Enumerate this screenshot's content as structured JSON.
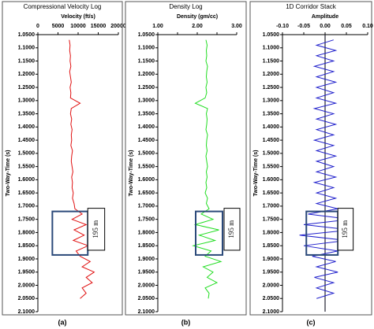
{
  "chart_data": [
    {
      "type": "line",
      "orientation": "vertical",
      "title": "Compressional Velocity Log",
      "x_label": "Velocity (ft/s)",
      "y_label": "Two-Way-Time (s)",
      "panel_label": "(a)",
      "annotation": "195 m",
      "highlight_range": [
        1.72,
        1.885
      ],
      "x": [
        1.07,
        1.09,
        1.11,
        1.13,
        1.15,
        1.17,
        1.19,
        1.21,
        1.23,
        1.25,
        1.27,
        1.29,
        1.31,
        1.33,
        1.35,
        1.37,
        1.39,
        1.41,
        1.43,
        1.45,
        1.47,
        1.49,
        1.51,
        1.53,
        1.55,
        1.57,
        1.59,
        1.61,
        1.63,
        1.65,
        1.67,
        1.69,
        1.71,
        1.73,
        1.75,
        1.77,
        1.79,
        1.81,
        1.83,
        1.85,
        1.87,
        1.89,
        1.91,
        1.93,
        1.95,
        1.97,
        1.99,
        2.01,
        2.03,
        2.05
      ],
      "values": [
        7800,
        8000,
        7900,
        8100,
        8000,
        8200,
        7900,
        8100,
        8300,
        8000,
        8200,
        8100,
        10500,
        8300,
        8100,
        8400,
        8200,
        8500,
        8300,
        8400,
        8200,
        8600,
        8400,
        8300,
        8500,
        8700,
        8400,
        8600,
        8500,
        8800,
        8600,
        9000,
        9200,
        11000,
        8500,
        12000,
        9000,
        11500,
        8800,
        12500,
        9500,
        10500,
        13000,
        11000,
        14000,
        12000,
        13500,
        11000,
        12000,
        10500
      ],
      "color": "#e01010",
      "xlim": [
        0,
        20000
      ],
      "xticks": [
        0,
        5000,
        10000,
        15000,
        20000
      ],
      "ylim": [
        1.05,
        2.1
      ],
      "y_reversed": true,
      "yticks": [
        {
          "value": 1.05,
          "label": "1.0500"
        },
        {
          "value": 1.1,
          "label": "1.1000"
        },
        {
          "value": 1.15,
          "label": "1.1500"
        },
        {
          "value": 1.2,
          "label": "1.2000"
        },
        {
          "value": 1.25,
          "label": "1.2500"
        },
        {
          "value": 1.3,
          "label": "1.3000"
        },
        {
          "value": 1.35,
          "label": "1.3500"
        },
        {
          "value": 1.4,
          "label": "1.4000"
        },
        {
          "value": 1.45,
          "label": "1.4500"
        },
        {
          "value": 1.5,
          "label": "1.5000"
        },
        {
          "value": 1.55,
          "label": "1.5500"
        },
        {
          "value": 1.6,
          "label": "1.6000"
        },
        {
          "value": 1.65,
          "label": "1.6500"
        },
        {
          "value": 1.7,
          "label": "1.7000"
        },
        {
          "value": 1.75,
          "label": "1.7500"
        },
        {
          "value": 1.8,
          "label": "1.8000"
        },
        {
          "value": 1.85,
          "label": "1.8500"
        },
        {
          "value": 1.9,
          "label": "1.9000"
        },
        {
          "value": 1.95,
          "label": "1.9500"
        },
        {
          "value": 2.0,
          "label": "2.0000"
        },
        {
          "value": 2.05,
          "label": "2.0500"
        },
        {
          "value": 2.1,
          "label": "2.1000"
        }
      ]
    },
    {
      "type": "line",
      "orientation": "vertical",
      "title": "Density Log",
      "x_label": "Density (gm/cc)",
      "y_label": "Two-Way-Time (s)",
      "panel_label": "(b)",
      "annotation": "195 m",
      "highlight_range": [
        1.72,
        1.885
      ],
      "x": [
        1.07,
        1.09,
        1.11,
        1.13,
        1.15,
        1.17,
        1.19,
        1.21,
        1.23,
        1.25,
        1.27,
        1.29,
        1.31,
        1.33,
        1.35,
        1.37,
        1.39,
        1.41,
        1.43,
        1.45,
        1.47,
        1.49,
        1.51,
        1.53,
        1.55,
        1.57,
        1.59,
        1.61,
        1.63,
        1.65,
        1.67,
        1.69,
        1.71,
        1.73,
        1.75,
        1.77,
        1.79,
        1.81,
        1.83,
        1.85,
        1.87,
        1.89,
        1.91,
        1.93,
        1.95,
        1.97,
        1.99,
        2.01,
        2.03,
        2.05
      ],
      "values": [
        2.22,
        2.25,
        2.23,
        2.24,
        2.22,
        2.26,
        2.24,
        2.23,
        2.25,
        2.22,
        2.24,
        2.2,
        1.95,
        2.26,
        2.23,
        2.25,
        2.24,
        2.22,
        2.26,
        2.24,
        2.23,
        2.25,
        2.22,
        2.24,
        2.26,
        2.23,
        2.25,
        2.22,
        2.24,
        2.2,
        2.26,
        2.23,
        2.3,
        2.1,
        2.4,
        1.95,
        2.55,
        2.05,
        2.45,
        1.9,
        2.35,
        2.2,
        2.6,
        2.15,
        2.4,
        2.25,
        2.5,
        2.2,
        2.3,
        2.28
      ],
      "color": "#22dd22",
      "xlim": [
        1,
        3
      ],
      "xticks": [
        {
          "value": 1,
          "label": "1.00"
        },
        {
          "value": 1.5,
          "label": ""
        },
        {
          "value": 2,
          "label": "2.00"
        },
        {
          "value": 2.5,
          "label": ""
        },
        {
          "value": 3,
          "label": "3.00"
        }
      ],
      "ylim": [
        1.05,
        2.1
      ],
      "y_reversed": true,
      "yticks": [
        {
          "value": 1.05,
          "label": "1.0500"
        },
        {
          "value": 1.1,
          "label": "1.1000"
        },
        {
          "value": 1.15,
          "label": "1.1500"
        },
        {
          "value": 1.2,
          "label": "1.2000"
        },
        {
          "value": 1.25,
          "label": "1.2500"
        },
        {
          "value": 1.3,
          "label": "1.3000"
        },
        {
          "value": 1.35,
          "label": "1.3500"
        },
        {
          "value": 1.4,
          "label": "1.4000"
        },
        {
          "value": 1.45,
          "label": "1.4500"
        },
        {
          "value": 1.5,
          "label": "1.5000"
        },
        {
          "value": 1.55,
          "label": "1.5500"
        },
        {
          "value": 1.6,
          "label": "1.6000"
        },
        {
          "value": 1.65,
          "label": "1.6500"
        },
        {
          "value": 1.7,
          "label": "1.7000"
        },
        {
          "value": 1.75,
          "label": "1.7500"
        },
        {
          "value": 1.8,
          "label": "1.8000"
        },
        {
          "value": 1.85,
          "label": "1.8500"
        },
        {
          "value": 1.9,
          "label": "1.9000"
        },
        {
          "value": 1.95,
          "label": "1.9500"
        },
        {
          "value": 2.0,
          "label": "2.0000"
        },
        {
          "value": 2.05,
          "label": "2.0500"
        },
        {
          "value": 2.1,
          "label": "2.1000"
        }
      ]
    },
    {
      "type": "line",
      "orientation": "vertical",
      "title": "1D Corridor Stack",
      "x_label": "Amplitude",
      "y_label": "Two-Way-Time (s)",
      "panel_label": "(c)",
      "annotation": "195 m",
      "highlight_range": [
        1.72,
        1.885
      ],
      "x": [
        1.07,
        1.09,
        1.11,
        1.13,
        1.15,
        1.17,
        1.19,
        1.21,
        1.23,
        1.25,
        1.27,
        1.29,
        1.31,
        1.33,
        1.35,
        1.37,
        1.39,
        1.41,
        1.43,
        1.45,
        1.47,
        1.49,
        1.51,
        1.53,
        1.55,
        1.57,
        1.59,
        1.61,
        1.63,
        1.65,
        1.67,
        1.69,
        1.71,
        1.73,
        1.75,
        1.77,
        1.79,
        1.81,
        1.83,
        1.85,
        1.87,
        1.89,
        1.91,
        1.93,
        1.95,
        1.97,
        1.99,
        2.01,
        2.03,
        2.05
      ],
      "values": [
        0.02,
        -0.02,
        0.025,
        -0.02,
        0.02,
        -0.025,
        0.02,
        -0.02,
        0.025,
        -0.02,
        0.02,
        -0.02,
        0.025,
        -0.025,
        0.02,
        -0.02,
        0.025,
        -0.02,
        0.02,
        -0.025,
        0.02,
        -0.02,
        0.025,
        -0.02,
        0.02,
        -0.02,
        0.025,
        -0.025,
        0.02,
        -0.02,
        0.025,
        -0.02,
        0.03,
        -0.04,
        0.06,
        -0.05,
        0.06,
        -0.06,
        0.05,
        -0.05,
        0.03,
        -0.03,
        0.025,
        -0.02,
        0.03,
        -0.025,
        0.02,
        -0.02,
        0.02,
        -0.02
      ],
      "color": "#2020cc",
      "xlim": [
        -0.1,
        0.1
      ],
      "xticks": [
        {
          "value": -0.1,
          "label": "-0.10"
        },
        {
          "value": -0.05,
          "label": "-0.05"
        },
        {
          "value": 0,
          "label": "0.00"
        },
        {
          "value": 0.05,
          "label": "0.05"
        },
        {
          "value": 0.1,
          "label": "0.10"
        }
      ],
      "ylim": [
        1.05,
        2.1
      ],
      "y_reversed": true,
      "yticks": [
        {
          "value": 1.05,
          "label": "1.0500"
        },
        {
          "value": 1.1,
          "label": "1.1000"
        },
        {
          "value": 1.15,
          "label": "1.1500"
        },
        {
          "value": 1.2,
          "label": "1.2000"
        },
        {
          "value": 1.25,
          "label": "1.2500"
        },
        {
          "value": 1.3,
          "label": "1.3000"
        },
        {
          "value": 1.35,
          "label": "1.3500"
        },
        {
          "value": 1.4,
          "label": "1.4000"
        },
        {
          "value": 1.45,
          "label": "1.4500"
        },
        {
          "value": 1.5,
          "label": "1.5000"
        },
        {
          "value": 1.55,
          "label": "1.5500"
        },
        {
          "value": 1.6,
          "label": "1.6000"
        },
        {
          "value": 1.65,
          "label": "1.6500"
        },
        {
          "value": 1.7,
          "label": "1.7000"
        },
        {
          "value": 1.75,
          "label": "1.7500"
        },
        {
          "value": 1.8,
          "label": "1.8000"
        },
        {
          "value": 1.85,
          "label": "1.8500"
        },
        {
          "value": 1.9,
          "label": "1.9000"
        },
        {
          "value": 1.95,
          "label": "1.9500"
        },
        {
          "value": 2.0,
          "label": "2.0000"
        },
        {
          "value": 2.05,
          "label": "2.0500"
        },
        {
          "value": 2.1,
          "label": "2.1000"
        }
      ]
    }
  ]
}
